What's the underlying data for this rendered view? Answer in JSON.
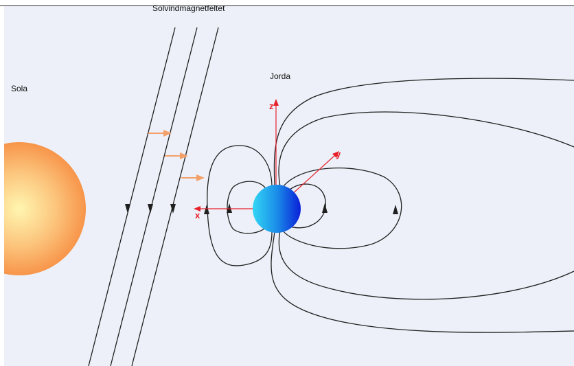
{
  "labels": {
    "sun": "Sola",
    "solar_wind_field": "Solvindmagnetfeltet",
    "earth": "Jorda"
  },
  "axes": {
    "x": "x",
    "y": "y",
    "z": "z"
  },
  "colors": {
    "background": "#edf0f8",
    "sun_center": "#fff6b0",
    "sun_edge": "#f7954a",
    "earth_light": "#33d6f5",
    "earth_dark": "#0a1fd8",
    "axes": "#e8202a",
    "solar_wind_arrows": "#f3a06a",
    "field_lines": "#1f1f1f"
  },
  "icons": [
    "field-arrow-down-icon",
    "field-arrow-up-icon",
    "solar-wind-arrow-icon"
  ]
}
